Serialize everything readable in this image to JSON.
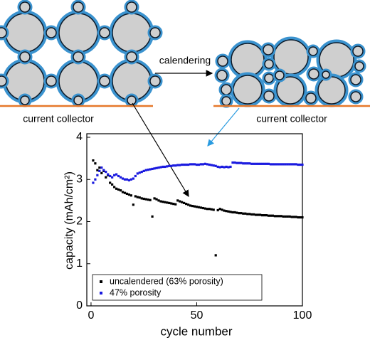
{
  "chart_data": {
    "type": "scatter",
    "annotations": [
      "calendering",
      "current collector",
      "current collector"
    ],
    "xlabel": "cycle number",
    "ylabel": "capacity (mAh/cm²)",
    "xlim": [
      -2,
      100
    ],
    "ylim": [
      0,
      4
    ],
    "xticks": [
      0,
      50,
      100
    ],
    "yticks": [
      0,
      1,
      2,
      3,
      4
    ],
    "legend": "lower left",
    "x": [
      1,
      2,
      3,
      4,
      5,
      6,
      7,
      8,
      9,
      10,
      11,
      12,
      13,
      14,
      15,
      16,
      17,
      18,
      19,
      20,
      21,
      22,
      23,
      24,
      25,
      26,
      27,
      28,
      29,
      30,
      31,
      32,
      33,
      34,
      35,
      36,
      37,
      38,
      39,
      40,
      41,
      42,
      43,
      44,
      45,
      46,
      47,
      48,
      49,
      50,
      51,
      52,
      53,
      54,
      55,
      56,
      57,
      58,
      59,
      60,
      61,
      62,
      63,
      64,
      65,
      66,
      67,
      68,
      69,
      70,
      71,
      72,
      73,
      74,
      75,
      76,
      77,
      78,
      79,
      80,
      81,
      82,
      83,
      84,
      85,
      86,
      87,
      88,
      89,
      90,
      91,
      92,
      93,
      94,
      95,
      96,
      97,
      98,
      99,
      100
    ],
    "series": [
      {
        "name": "uncalendered (63% porosity)",
        "color": "#000000",
        "values": [
          3.45,
          3.38,
          3.22,
          3.28,
          3.15,
          3.2,
          3.05,
          3.1,
          2.92,
          2.88,
          2.82,
          2.78,
          2.76,
          2.74,
          2.7,
          2.68,
          2.66,
          2.64,
          2.62,
          2.4,
          2.6,
          2.58,
          2.57,
          2.55,
          2.54,
          2.53,
          2.52,
          2.51,
          2.12,
          2.55,
          2.53,
          2.5,
          2.48,
          2.47,
          2.46,
          2.45,
          2.44,
          2.43,
          2.42,
          2.41,
          2.5,
          2.48,
          2.46,
          2.44,
          2.42,
          2.4,
          2.38,
          2.37,
          2.36,
          2.35,
          2.34,
          2.33,
          2.32,
          2.31,
          2.3,
          2.3,
          2.29,
          2.28,
          1.2,
          2.27,
          2.3,
          2.28,
          2.26,
          2.25,
          2.24,
          2.23,
          2.22,
          2.22,
          2.21,
          2.2,
          2.2,
          2.19,
          2.19,
          2.18,
          2.18,
          2.17,
          2.17,
          2.16,
          2.16,
          2.16,
          2.15,
          2.15,
          2.15,
          2.14,
          2.14,
          2.14,
          2.13,
          2.13,
          2.13,
          2.13,
          2.12,
          2.12,
          2.12,
          2.12,
          2.11,
          2.11,
          2.11,
          2.1,
          2.1,
          2.1
        ]
      },
      {
        "name": "47% porosity",
        "color": "#1a1adf",
        "values": [
          2.92,
          3.0,
          3.1,
          3.2,
          3.28,
          3.22,
          3.18,
          3.12,
          3.08,
          3.05,
          3.1,
          3.12,
          3.08,
          3.05,
          3.02,
          3.0,
          3.0,
          2.98,
          3.0,
          3.02,
          3.08,
          3.14,
          3.16,
          3.18,
          3.2,
          3.22,
          3.23,
          3.24,
          3.25,
          3.26,
          3.27,
          3.28,
          3.29,
          3.3,
          3.3,
          3.31,
          3.32,
          3.32,
          3.33,
          3.33,
          3.34,
          3.34,
          3.35,
          3.35,
          3.35,
          3.35,
          3.36,
          3.36,
          3.36,
          3.35,
          3.35,
          3.36,
          3.36,
          3.37,
          3.36,
          3.35,
          3.34,
          3.33,
          3.32,
          3.3,
          3.29,
          3.3,
          3.29,
          3.3,
          3.29,
          3.3,
          3.4,
          3.4,
          3.39,
          3.39,
          3.39,
          3.38,
          3.38,
          3.38,
          3.38,
          3.37,
          3.37,
          3.37,
          3.37,
          3.37,
          3.37,
          3.37,
          3.37,
          3.37,
          3.36,
          3.36,
          3.36,
          3.36,
          3.36,
          3.36,
          3.36,
          3.36,
          3.36,
          3.36,
          3.36,
          3.36,
          3.36,
          3.35,
          3.35,
          3.35
        ]
      }
    ]
  }
}
